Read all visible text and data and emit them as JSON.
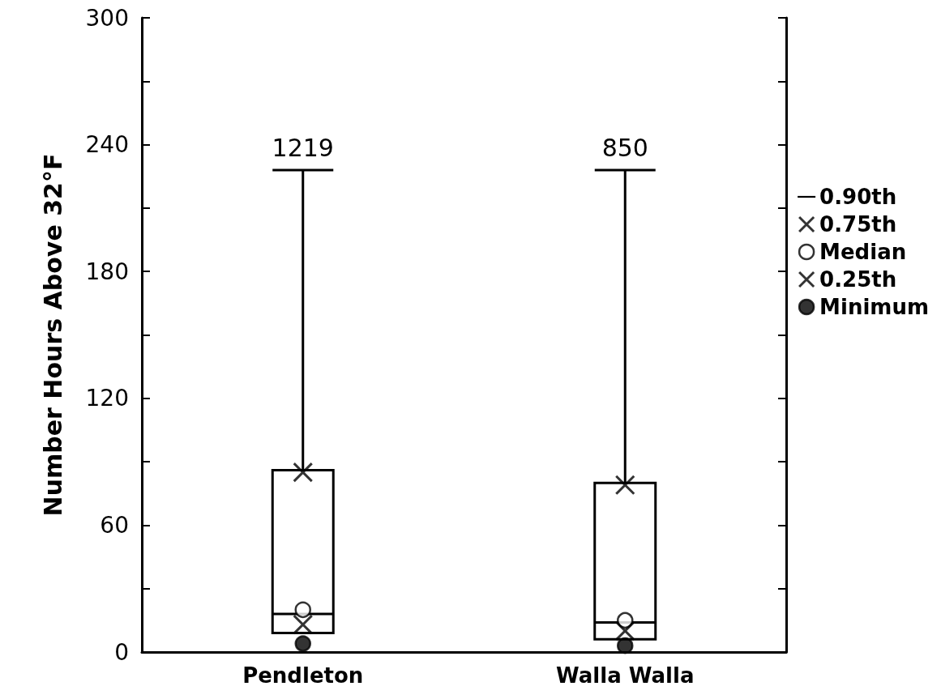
{
  "chart_data": {
    "type": "box",
    "ylabel": "Number Hours Above 32°F",
    "categories": [
      "Pendleton",
      "Walla Walla"
    ],
    "ylim": [
      0,
      300
    ],
    "yticks": [
      0,
      {
        "value": 30,
        "label": null
      },
      60,
      {
        "value": 90,
        "label": null
      },
      120,
      {
        "value": 150,
        "label": null
      },
      180,
      {
        "value": 210,
        "label": null
      },
      240,
      {
        "value": 270,
        "label": null
      },
      300
    ],
    "series": [
      {
        "name": "0.90th",
        "color": "#000000",
        "boxes": [
          {
            "low": 9,
            "q1": 9,
            "median": 18,
            "q3": 86,
            "high": 228
          },
          {
            "low": 6,
            "q1": 6,
            "median": 14,
            "q3": 80,
            "high": 228
          }
        ]
      },
      {
        "type": "scatter",
        "name": "0.75th",
        "marker": "cross",
        "color": "#000000",
        "x": [
          "Pendleton",
          "Walla Walla"
        ],
        "values": [
          85,
          79
        ]
      },
      {
        "type": "scatter",
        "name": "Median",
        "marker": "circle",
        "color": "#ffffff",
        "x": [
          "Pendleton",
          "Walla Walla"
        ],
        "values": [
          20,
          15
        ]
      },
      {
        "type": "scatter",
        "name": "0.25th",
        "marker": "cross",
        "color": "#000000",
        "x": [
          "Pendleton",
          "Walla Walla"
        ],
        "values": [
          13,
          10
        ]
      },
      {
        "type": "scatter",
        "name": "Minimum",
        "marker": "circle",
        "color": "#000000",
        "x": [
          "Pendleton",
          "Walla Walla"
        ],
        "values": [
          4,
          3
        ]
      }
    ],
    "annotations": [
      {
        "text": "1219",
        "x": "Pendleton",
        "y": 228
      },
      {
        "text": "850",
        "x": "Walla Walla",
        "y": 228
      }
    ],
    "legend": "right"
  }
}
